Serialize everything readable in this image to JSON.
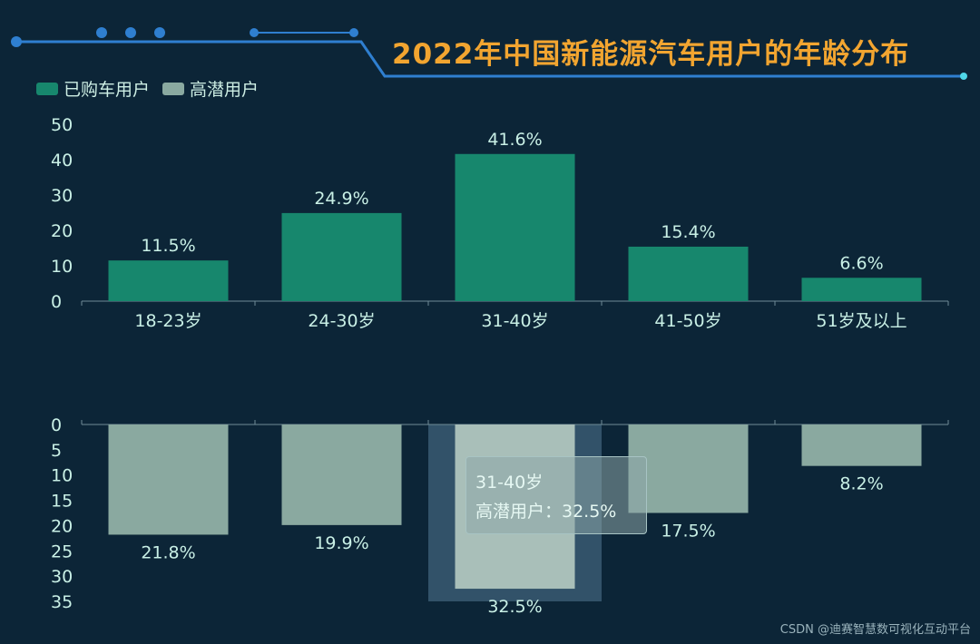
{
  "title": "2022年中国新能源汽车用户的年龄分布",
  "watermark": "CSDN @迪赛智慧数可视化互动平台",
  "colors": {
    "purchased": "#17876d",
    "potential": "#8aa9a0",
    "accent": "#f2a530",
    "deco": "#2f7fd0"
  },
  "tooltip": {
    "category": "31-40岁",
    "text": "高潜用户：32.5%"
  },
  "chart_data": [
    {
      "type": "bar",
      "categories": [
        "18-23岁",
        "24-30岁",
        "31-40岁",
        "41-50岁",
        "51岁及以上"
      ],
      "series": [
        {
          "name": "已购车用户",
          "values": [
            11.5,
            24.9,
            41.6,
            15.4,
            6.6
          ],
          "labels": [
            "11.5%",
            "24.9%",
            "41.6%",
            "15.4%",
            "6.6%"
          ]
        }
      ],
      "ylim": [
        0,
        50
      ],
      "yticks": [
        "0",
        "10",
        "20",
        "30",
        "40",
        "50"
      ],
      "legend": "top-left"
    },
    {
      "type": "bar",
      "categories": [
        "18-23岁",
        "24-30岁",
        "31-40岁",
        "41-50岁",
        "51岁及以上"
      ],
      "series": [
        {
          "name": "高潜用户",
          "values": [
            21.8,
            19.9,
            32.5,
            17.5,
            8.2
          ],
          "labels": [
            "21.8%",
            "19.9%",
            "32.5%",
            "17.5%",
            "8.2%"
          ]
        }
      ],
      "ylim": [
        0,
        35
      ],
      "yticks": [
        "0",
        "5",
        "10",
        "15",
        "20",
        "25",
        "30",
        "35"
      ],
      "y_inverted": true
    }
  ]
}
